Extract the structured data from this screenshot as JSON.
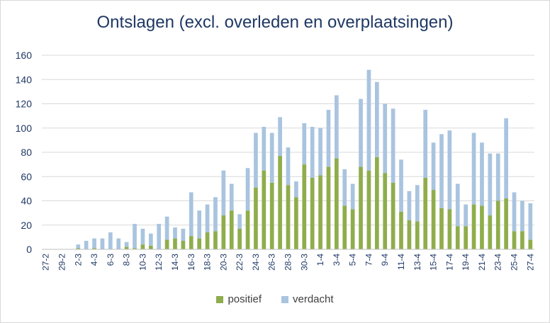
{
  "chart_data": {
    "type": "bar",
    "stacked": true,
    "title": "Ontslagen  (excl. overleden en overplaatsingen)",
    "xlabel": "",
    "ylabel": "",
    "ylim": [
      0,
      160
    ],
    "yticks": [
      0,
      20,
      40,
      60,
      80,
      100,
      120,
      140,
      160
    ],
    "grid": true,
    "legend_position": "bottom",
    "x_tick_labels": [
      "27-2",
      "29-2",
      "2-3",
      "4-3",
      "6-3",
      "8-3",
      "10-3",
      "12-3",
      "14-3",
      "16-3",
      "18-3",
      "20-3",
      "22-3",
      "24-3",
      "26-3",
      "28-3",
      "30-3",
      "1-4",
      "3-4",
      "5-4",
      "7-4",
      "9-4",
      "11-4",
      "13-4",
      "15-4",
      "17-4",
      "19-4",
      "21-4",
      "23-4",
      "25-4",
      "27-4"
    ],
    "categories": [
      "27-2",
      "28-2",
      "29-2",
      "1-3",
      "2-3",
      "3-3",
      "4-3",
      "5-3",
      "6-3",
      "7-3",
      "8-3",
      "9-3",
      "10-3",
      "11-3",
      "12-3",
      "13-3",
      "14-3",
      "15-3",
      "16-3",
      "17-3",
      "18-3",
      "19-3",
      "20-3",
      "21-3",
      "22-3",
      "23-3",
      "24-3",
      "25-3",
      "26-3",
      "27-3",
      "28-3",
      "29-3",
      "30-3",
      "31-3",
      "1-4",
      "2-4",
      "3-4",
      "4-4",
      "5-4",
      "6-4",
      "7-4",
      "8-4",
      "9-4",
      "10-4",
      "11-4",
      "12-4",
      "13-4",
      "14-4",
      "15-4",
      "16-4",
      "17-4",
      "18-4",
      "19-4",
      "20-4",
      "21-4",
      "22-4",
      "23-4",
      "24-4",
      "25-4",
      "26-4",
      "27-4"
    ],
    "series": [
      {
        "name": "positief",
        "color": "#8fad4c",
        "values": [
          0,
          0,
          0,
          0,
          1,
          0,
          1,
          0,
          0,
          0,
          2,
          1,
          4,
          3,
          0,
          8,
          9,
          7,
          11,
          9,
          14,
          15,
          28,
          32,
          17,
          32,
          51,
          65,
          55,
          77,
          53,
          43,
          70,
          59,
          61,
          68,
          75,
          36,
          33,
          68,
          65,
          76,
          63,
          55,
          31,
          24,
          23,
          59,
          49,
          34,
          33,
          19,
          19,
          37,
          36,
          28,
          40,
          42,
          15,
          15,
          8
        ]
      },
      {
        "name": "verdacht",
        "color": "#a9c4df",
        "values": [
          0,
          0,
          0,
          0,
          3,
          7,
          8,
          9,
          14,
          9,
          4,
          20,
          13,
          10,
          21,
          19,
          9,
          10,
          36,
          23,
          23,
          28,
          37,
          22,
          12,
          35,
          45,
          36,
          41,
          32,
          31,
          13,
          34,
          42,
          39,
          47,
          52,
          30,
          21,
          56,
          83,
          62,
          57,
          61,
          43,
          24,
          30,
          56,
          39,
          61,
          65,
          35,
          18,
          59,
          52,
          51,
          39,
          66,
          32,
          25,
          30
        ]
      }
    ]
  }
}
